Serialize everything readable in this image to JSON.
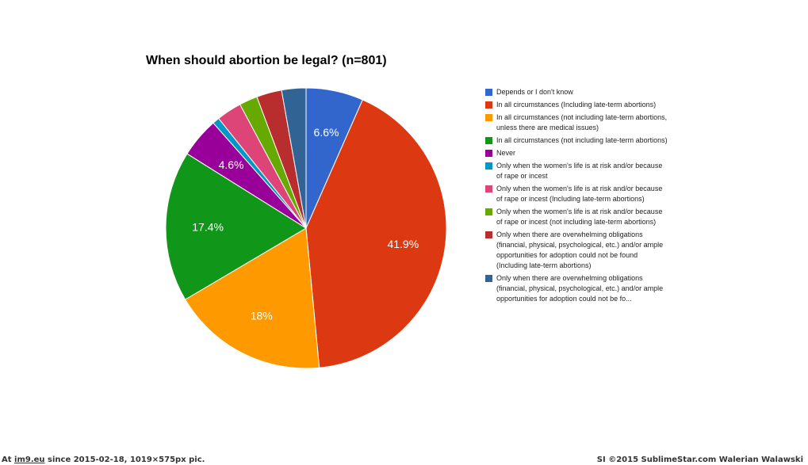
{
  "chart_data": {
    "type": "pie",
    "title": "When should abortion be legal? (n=801)",
    "slices": [
      {
        "label": "Depends or I don't know",
        "value": 6.6,
        "display_label": "6.6%",
        "color": "#3366cc"
      },
      {
        "label": "In all circumstances (Including late-term abortions)",
        "value": 41.9,
        "display_label": "41.9%",
        "color": "#dc3912"
      },
      {
        "label": "In all circumstances (not including late-term abortions, unless there are medical issues)",
        "value": 18.0,
        "display_label": "18%",
        "color": "#ff9900"
      },
      {
        "label": "In all circumstances (not including late-term abortions)",
        "value": 17.4,
        "display_label": "17.4%",
        "color": "#109618"
      },
      {
        "label": "Never",
        "value": 4.6,
        "display_label": "4.6%",
        "color": "#990099"
      },
      {
        "label": "Only when the women's life is at risk and/or because of rape or incest",
        "value": 0.8,
        "display_label": "",
        "color": "#0099c6"
      },
      {
        "label": "Only when the women's life is at risk and/or because of rape or incest (Including late-term abortions)",
        "value": 2.9,
        "display_label": "",
        "color": "#dd4477"
      },
      {
        "label": "Only when the women's life is at risk and/or because of rape or incest (not including late-term abortions)",
        "value": 2.1,
        "display_label": "",
        "color": "#66aa00"
      },
      {
        "label": "Only when there are overwhelming obligations (financial, physical, psychological, etc.) and/or ample opportunities for adoption could not be found (Including late-term abortions)",
        "value": 2.9,
        "display_label": "",
        "color": "#b82e2e"
      },
      {
        "label": "Only when there are overwhelming obligations (financial, physical, psychological, etc.) and/or ample opportunities for adoption could not be fo...",
        "value": 2.8,
        "display_label": "",
        "color": "#316395"
      }
    ],
    "legend_position": "right",
    "slice_border_color": "#ffffff"
  },
  "footer": {
    "prefix": "At ",
    "site": "im9.eu",
    "suffix": " since 2015-02-18, 1019×575px pic.",
    "right": "SI ©2015 SublimeStar.com Walerian Walawski"
  }
}
